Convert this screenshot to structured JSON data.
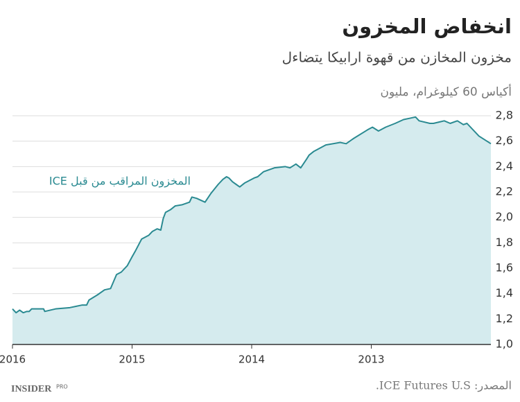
{
  "chart_data": {
    "type": "area",
    "title": "انخفاض المخزون",
    "subtitle": "مخزون المخازن من قهوة ارابيكا يتضاءل",
    "y_label": "أكياس 60 كيلوغرام، مليون",
    "source": "المصدر: ICE Futures U.S.",
    "logo": {
      "main": "INSIDER",
      "sub": "PRO"
    },
    "x": [
      2016.0,
      2015.97,
      2015.94,
      2015.91,
      2015.88,
      2015.86,
      2015.84,
      2015.74,
      2015.73,
      2015.64,
      2015.52,
      2015.47,
      2015.42,
      2015.38,
      2015.36,
      2015.29,
      2015.23,
      2015.18,
      2015.13,
      2015.09,
      2015.04,
      2015.0,
      2014.97,
      2014.92,
      2014.86,
      2014.83,
      2014.79,
      2014.76,
      2014.74,
      2014.72,
      2014.68,
      2014.64,
      2014.58,
      2014.52,
      2014.5,
      2014.46,
      2014.39,
      2014.34,
      2014.28,
      2014.24,
      2014.21,
      2014.19,
      2014.16,
      2014.13,
      2014.1,
      2014.06,
      2014.02,
      2013.98,
      2013.95,
      2013.9,
      2013.81,
      2013.72,
      2013.68,
      2013.63,
      2013.59,
      2013.54,
      2013.52,
      2013.48,
      2013.38,
      2013.26,
      2013.21,
      2013.15,
      2013.03,
      2012.99,
      2012.94,
      2012.88,
      2012.8,
      2012.73,
      2012.68,
      2012.63,
      2012.6,
      2012.51,
      2012.48,
      2012.39,
      2012.34,
      2012.28,
      2012.23,
      2012.2,
      2012.1,
      2012.0
    ],
    "series": [
      {
        "name": "المخزون المراقب من قبل ICE",
        "color": "#2a8a91",
        "fill": "#d5ebee",
        "values": [
          1.28,
          1.25,
          1.27,
          1.25,
          1.26,
          1.26,
          1.28,
          1.28,
          1.26,
          1.28,
          1.29,
          1.3,
          1.31,
          1.31,
          1.35,
          1.39,
          1.43,
          1.44,
          1.55,
          1.57,
          1.62,
          1.69,
          1.74,
          1.83,
          1.86,
          1.89,
          1.91,
          1.9,
          1.99,
          2.04,
          2.06,
          2.09,
          2.1,
          2.12,
          2.16,
          2.15,
          2.12,
          2.19,
          2.26,
          2.3,
          2.32,
          2.31,
          2.28,
          2.26,
          2.24,
          2.27,
          2.29,
          2.31,
          2.32,
          2.36,
          2.39,
          2.4,
          2.39,
          2.42,
          2.39,
          2.46,
          2.49,
          2.52,
          2.57,
          2.59,
          2.58,
          2.62,
          2.69,
          2.71,
          2.68,
          2.71,
          2.74,
          2.77,
          2.78,
          2.79,
          2.76,
          2.74,
          2.74,
          2.76,
          2.74,
          2.76,
          2.73,
          2.74,
          2.64,
          2.58
        ]
      }
    ],
    "xlim": [
      2016,
      2012
    ],
    "xticks": [
      2016,
      2015,
      2014,
      2013
    ],
    "ylim": [
      1.0,
      2.8
    ],
    "yticks": [
      {
        "value": 1.0,
        "label": "1,0"
      },
      {
        "value": 1.2,
        "label": "1,2"
      },
      {
        "value": 1.4,
        "label": "1,4"
      },
      {
        "value": 1.6,
        "label": "1,6"
      },
      {
        "value": 1.8,
        "label": "1,8"
      },
      {
        "value": 2.0,
        "label": "2,0"
      },
      {
        "value": 2.2,
        "label": "2,2"
      },
      {
        "value": 2.4,
        "label": "2,4"
      },
      {
        "value": 2.6,
        "label": "2,6"
      },
      {
        "value": 2.8,
        "label": "2,8"
      }
    ],
    "grid": true
  }
}
